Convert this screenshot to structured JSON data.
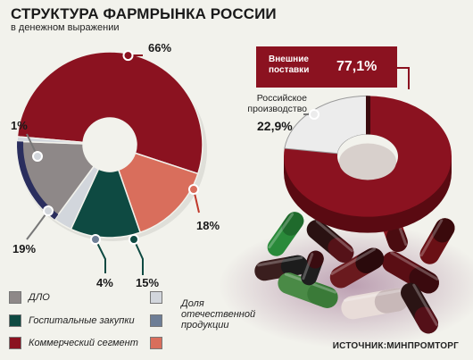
{
  "title": "СТРУКТУРА ФАРМРЫНКА РОССИИ",
  "subtitle": "в денежном выражении",
  "source": "ИСТОЧНИК:МИНПРОМТОРГ",
  "colors": {
    "dlo": "#8e8888",
    "hospital": "#0e4a42",
    "commercial": "#8b1220",
    "dlo_domestic": "#d2d6dc",
    "hospital_domestic": "#6e7e96",
    "commercial_domestic": "#d96e5c",
    "navy_edge": "#2a2e5e",
    "import": "#8b1220",
    "russian": "#ececec"
  },
  "legend": {
    "items": [
      {
        "label": "ДЛО",
        "icon": "square-gray-swatch"
      },
      {
        "label": "Госпитальные закупки",
        "icon": "square-teal-swatch"
      },
      {
        "label": "Коммерческий сегмент",
        "icon": "square-crimson-swatch"
      }
    ],
    "domestic_label": "Доля отечественной продукции"
  },
  "chart_data": [
    {
      "type": "pie",
      "title": "СТРУКТУРА ФАРМРЫНКА РОССИИ",
      "subtitle": "в денежном выражении",
      "slices": [
        {
          "name": "Коммерческий сегмент",
          "value": 66,
          "label": "66%"
        },
        {
          "name": "Коммерческий сегмент — доля отечественной продукции",
          "value": 18,
          "label": "18%"
        },
        {
          "name": "Госпитальные закупки",
          "value": 15,
          "label": "15%"
        },
        {
          "name": "Госпитальные закупки — доля отечественной продукции",
          "value": 4,
          "label": "4%"
        },
        {
          "name": "ДЛО",
          "value": 19,
          "label": "19%"
        },
        {
          "name": "ДЛО — доля отечественной продукции",
          "value": 1,
          "label": "1%"
        }
      ]
    },
    {
      "type": "pie",
      "slices": [
        {
          "name": "Внешние поставки",
          "value": 77.1,
          "label": "77,1%"
        },
        {
          "name": "Российское производство",
          "value": 22.9,
          "label": "22,9%"
        }
      ]
    }
  ],
  "labels": {
    "pct_66": "66%",
    "pct_18": "18%",
    "pct_15": "15%",
    "pct_4": "4%",
    "pct_19": "19%",
    "pct_1": "1%",
    "import_label": "Внешние поставки",
    "import_value": "77,1%",
    "russian_label": "Российское производство",
    "russian_value": "22,9%"
  }
}
